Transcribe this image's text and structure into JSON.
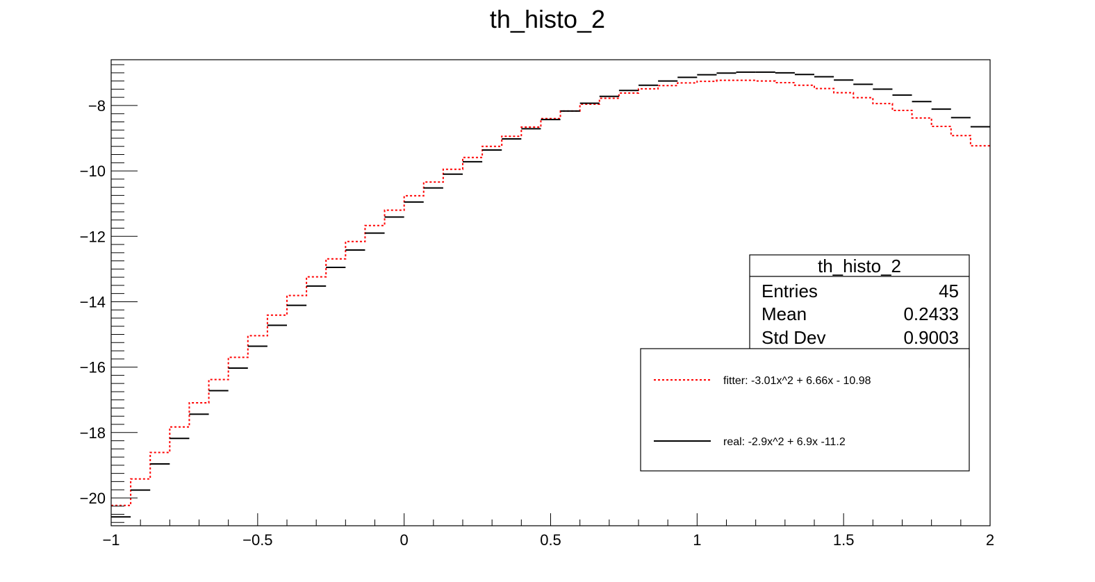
{
  "chart_data": {
    "type": "line",
    "title": "th_histo_2",
    "xlabel": "",
    "ylabel": "",
    "xlim": [
      -1,
      2
    ],
    "ylim": [
      -20.85,
      -6.6
    ],
    "x_ticks": [
      -1,
      -0.5,
      0,
      0.5,
      1,
      1.5,
      2
    ],
    "x_tick_labels": [
      "−1",
      "−0.5",
      "0",
      "0.5",
      "1",
      "1.5",
      "2"
    ],
    "y_ticks": [
      -20,
      -18,
      -16,
      -14,
      -12,
      -10,
      -8
    ],
    "y_tick_labels": [
      "−20",
      "−18",
      "−16",
      "−14",
      "−12",
      "−10",
      "−8"
    ],
    "bins": {
      "count": 45,
      "xmin": -1,
      "xmax": 2
    },
    "series": [
      {
        "name": "fitter: -3.01x^2 + 6.66x - 10.98",
        "style": "dotted-step",
        "color": "#ff0000",
        "values": [
          -20.23,
          -19.42,
          -18.61,
          -17.83,
          -17.09,
          -16.38,
          -15.7,
          -15.04,
          -14.41,
          -13.81,
          -13.24,
          -12.69,
          -12.16,
          -11.67,
          -11.2,
          -10.76,
          -10.34,
          -9.95,
          -9.59,
          -9.25,
          -8.94,
          -8.66,
          -8.4,
          -8.17,
          -7.96,
          -7.78,
          -7.62,
          -7.49,
          -7.39,
          -7.31,
          -7.26,
          -7.23,
          -7.23,
          -7.25,
          -7.3,
          -7.38,
          -7.48,
          -7.61,
          -7.76,
          -7.94,
          -8.15,
          -8.38,
          -8.64,
          -8.92,
          -9.23
        ]
      },
      {
        "name": "real: -2.9x^2 + 6.9x -11.2",
        "style": "solid-bin-segments",
        "color": "#000000",
        "values": [
          -20.58,
          -19.76,
          -18.96,
          -18.18,
          -17.44,
          -16.72,
          -16.03,
          -15.36,
          -14.72,
          -14.11,
          -13.52,
          -12.95,
          -12.42,
          -11.9,
          -11.41,
          -10.95,
          -10.52,
          -10.1,
          -9.72,
          -9.36,
          -9.02,
          -8.71,
          -8.43,
          -8.17,
          -7.93,
          -7.72,
          -7.54,
          -7.38,
          -7.25,
          -7.14,
          -7.06,
          -7.01,
          -6.98,
          -6.98,
          -7.0,
          -7.05,
          -7.12,
          -7.22,
          -7.35,
          -7.5,
          -7.68,
          -7.88,
          -8.11,
          -8.37,
          -8.65
        ]
      }
    ],
    "stats_box": {
      "title": "th_histo_2",
      "rows": [
        {
          "label": "Entries",
          "value": "45"
        },
        {
          "label": "Mean",
          "value": "0.2433"
        },
        {
          "label": "Std Dev",
          "value": "0.9003"
        }
      ]
    },
    "legend": {
      "position": "right-middle",
      "entries": [
        {
          "label": "fitter: -3.01x^2 + 6.66x - 10.98",
          "color": "#ff0000",
          "style": "dotted"
        },
        {
          "label": "real: -2.9x^2 + 6.9x -11.2",
          "color": "#000000",
          "style": "solid"
        }
      ]
    },
    "grid": false
  }
}
